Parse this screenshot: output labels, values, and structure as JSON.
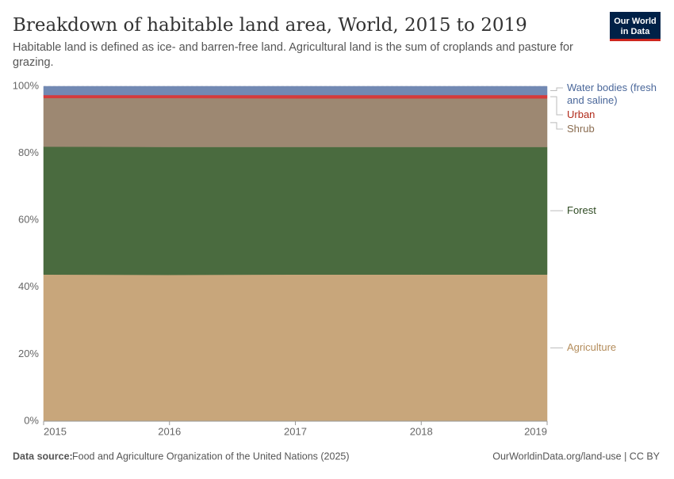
{
  "chart_data": {
    "type": "stacked-area",
    "title": "Breakdown of habitable land area, World, 2015 to 2019",
    "subtitle": "Habitable land is defined as ice- and barren-free land. Agricultural land is the sum of croplands and pasture for grazing.",
    "logo": [
      "Our World",
      "in Data"
    ],
    "source_label": "Data source:",
    "source": "Food and Agriculture Organization of the United Nations (2025)",
    "footer_right": "OurWorldinData.org/land-use | CC BY",
    "x": [
      2015,
      2016,
      2017,
      2018,
      2019
    ],
    "xlim": [
      2015,
      2019
    ],
    "xticks": [
      2015,
      2016,
      2017,
      2018,
      2019
    ],
    "ylim": [
      0,
      100
    ],
    "yticks": [
      {
        "value": 0,
        "label": "0%"
      },
      {
        "value": 20,
        "label": "20%"
      },
      {
        "value": 40,
        "label": "40%"
      },
      {
        "value": 60,
        "label": "60%"
      },
      {
        "value": 80,
        "label": "80%"
      },
      {
        "value": 100,
        "label": "100%"
      }
    ],
    "grid": true,
    "legend": "right",
    "series": [
      {
        "name": "Agriculture",
        "color": "#c8a67b",
        "label_color": "#b48d5c",
        "values": [
          43.8,
          43.7,
          43.8,
          43.8,
          43.8
        ]
      },
      {
        "name": "Forest",
        "color": "#4a6b3f",
        "label_color": "#2e4a22",
        "values": [
          38.2,
          38.2,
          38.1,
          38.1,
          38.1
        ]
      },
      {
        "name": "Shrub",
        "color": "#9d8872",
        "label_color": "#8a6c50",
        "values": [
          14.5,
          14.6,
          14.5,
          14.5,
          14.5
        ]
      },
      {
        "name": "Urban",
        "color": "#d63b3b",
        "label_color": "#b12a1a",
        "values": [
          0.9,
          0.9,
          1.0,
          1.0,
          1.0
        ]
      },
      {
        "name": "Water bodies (fresh and saline)",
        "color": "#7289b3",
        "label_color": "#4a679a",
        "values": [
          2.6,
          2.6,
          2.6,
          2.6,
          2.6
        ]
      }
    ]
  }
}
